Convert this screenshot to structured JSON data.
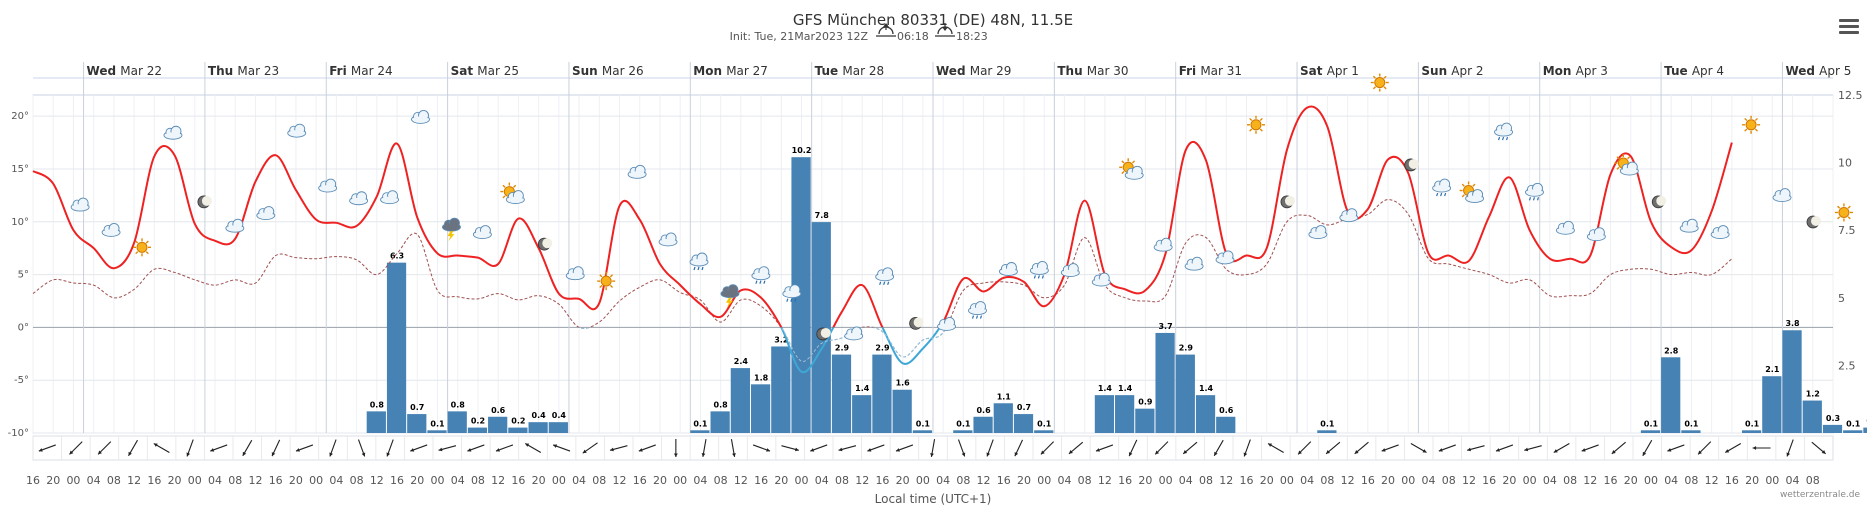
{
  "header": {
    "title": "GFS München 80331 (DE) 48N, 11.5E",
    "init": "Init: Tue, 21Mar2023 12Z",
    "sunrise": "06:18",
    "sunset": "18:23",
    "credit": "wetterzentrale.de",
    "menu_icon": "hamburger-menu-icon"
  },
  "chart_data": {
    "type": "line+bar",
    "xlabel": "Local time (UTC+1)",
    "y_left": {
      "ticks": [
        "20°",
        "15°",
        "10°",
        "5°",
        "0°",
        "-5°",
        "-10°"
      ],
      "values": [
        20,
        15,
        10,
        5,
        0,
        -5,
        -10
      ],
      "range": [
        -10,
        22
      ]
    },
    "y_right": {
      "ticks": [
        "12.5",
        "10",
        "7.5",
        "5",
        "2.5"
      ],
      "values": [
        12.5,
        10,
        7.5,
        5,
        2.5
      ],
      "range": [
        0,
        12.5
      ]
    },
    "days": [
      {
        "dow": "Wed",
        "date": "Mar 22"
      },
      {
        "dow": "Thu",
        "date": "Mar 23"
      },
      {
        "dow": "Fri",
        "date": "Mar 24"
      },
      {
        "dow": "Sat",
        "date": "Mar 25"
      },
      {
        "dow": "Sun",
        "date": "Mar 26"
      },
      {
        "dow": "Mon",
        "date": "Mar 27"
      },
      {
        "dow": "Tue",
        "date": "Mar 28"
      },
      {
        "dow": "Wed",
        "date": "Mar 29"
      },
      {
        "dow": "Thu",
        "date": "Mar 30"
      },
      {
        "dow": "Fri",
        "date": "Mar 31"
      },
      {
        "dow": "Sat",
        "date": "Apr 1"
      },
      {
        "dow": "Sun",
        "date": "Apr 2"
      },
      {
        "dow": "Mon",
        "date": "Apr 3"
      },
      {
        "dow": "Tue",
        "date": "Apr 4"
      },
      {
        "dow": "Wed",
        "date": "Apr 5"
      }
    ],
    "hour_ticks": [
      "16",
      "20",
      "00",
      "04",
      "08",
      "12",
      "16",
      "20",
      "00",
      "04",
      "08",
      "12",
      "16",
      "20",
      "00",
      "04",
      "08",
      "12",
      "16",
      "20",
      "00",
      "04",
      "08",
      "12",
      "16",
      "20",
      "00",
      "04",
      "08",
      "12",
      "16",
      "20",
      "00",
      "04",
      "08",
      "12",
      "16",
      "20",
      "00",
      "04",
      "08",
      "12",
      "16",
      "20",
      "00",
      "04",
      "08",
      "12",
      "16",
      "20",
      "00",
      "04",
      "08",
      "12",
      "16",
      "20",
      "00",
      "04",
      "08",
      "12",
      "16",
      "20",
      "00",
      "04",
      "08",
      "12",
      "16",
      "20",
      "00",
      "04",
      "08",
      "12",
      "16",
      "20",
      "00",
      "04",
      "08",
      "12",
      "16",
      "20",
      "00",
      "04",
      "08",
      "12",
      "16",
      "20",
      "00",
      "04",
      "08"
    ],
    "series": [
      {
        "name": "Temperature 2m",
        "color": "#ee2222",
        "cold_color": "#3fa7d6",
        "unit": "°C",
        "step_hours": 4,
        "values": [
          14.8,
          13.6,
          9.2,
          7.5,
          5.6,
          8.0,
          16.2,
          16.3,
          9.8,
          8.2,
          8.4,
          13.8,
          16.3,
          13.0,
          10.2,
          9.9,
          9.6,
          12.4,
          17.4,
          10.4,
          7.0,
          6.8,
          6.6,
          6.0,
          10.3,
          7.5,
          3.2,
          2.7,
          2.3,
          11.5,
          10.2,
          6.0,
          4.0,
          2.2,
          1.0,
          3.5,
          2.8,
          0.0,
          -4.2,
          -2.0,
          1.5,
          4.0,
          0.0,
          -3.4,
          -2.0,
          0.5,
          4.6,
          3.4,
          4.7,
          4.3,
          2.0,
          5.0,
          12.0,
          5.0,
          3.6,
          3.5,
          7.0,
          16.8,
          15.8,
          7.0,
          6.8,
          7.5,
          16.8,
          20.8,
          19.0,
          11.0,
          11.2,
          15.9,
          14.6,
          7.0,
          6.8,
          6.3,
          10.5,
          14.2,
          9.2,
          6.5,
          6.5,
          6.8,
          14.5,
          16.2,
          10.0,
          7.6,
          7.3,
          11.0,
          17.5
        ]
      },
      {
        "name": "Dew point",
        "color": "#a05050",
        "style": "dashed",
        "unit": "°C",
        "step_hours": 4,
        "values": [
          3.2,
          4.5,
          4.2,
          4.0,
          2.8,
          3.6,
          5.5,
          5.2,
          4.5,
          4.0,
          4.5,
          4.2,
          6.8,
          6.6,
          6.5,
          6.7,
          6.4,
          5.0,
          7.0,
          8.8,
          3.5,
          2.9,
          2.7,
          3.2,
          2.6,
          3.0,
          2.2,
          0.0,
          0.5,
          2.5,
          3.8,
          4.5,
          3.3,
          2.6,
          0.5,
          2.6,
          2.0,
          0.0,
          -3.2,
          -1.5,
          -1.0,
          0.0,
          -0.4,
          -2.8,
          -1.2,
          -0.5,
          3.5,
          4.2,
          4.3,
          4.0,
          2.8,
          4.0,
          8.5,
          4.0,
          2.8,
          2.5,
          3.0,
          8.0,
          8.5,
          5.5,
          5.0,
          6.0,
          10.0,
          10.6,
          9.7,
          10.3,
          10.7,
          12.1,
          10.7,
          6.5,
          6.0,
          5.5,
          5.0,
          4.2,
          4.5,
          3.0,
          3.0,
          3.2,
          5.0,
          5.5,
          5.5,
          5.0,
          5.2,
          5.0,
          6.5
        ]
      },
      {
        "name": "Precipitation",
        "color": "#4682b4",
        "type": "bar",
        "unit": "mm/6h",
        "bars": [
          {
            "t": 17,
            "v": 0.8
          },
          {
            "t": 18,
            "v": 6.3
          },
          {
            "t": 19,
            "v": 0.7
          },
          {
            "t": 20,
            "v": 0.1
          },
          {
            "t": 21,
            "v": 0.8
          },
          {
            "t": 22,
            "v": 0.2
          },
          {
            "t": 23,
            "v": 0.6
          },
          {
            "t": 24,
            "v": 0.2
          },
          {
            "t": 25,
            "v": 0.4
          },
          {
            "t": 26,
            "v": 0.4
          },
          {
            "t": 33,
            "v": 0.1
          },
          {
            "t": 34,
            "v": 0.8
          },
          {
            "t": 35,
            "v": 2.4
          },
          {
            "t": 36,
            "v": 1.8
          },
          {
            "t": 37,
            "v": 3.2
          },
          {
            "t": 38,
            "v": 10.2
          },
          {
            "t": 39,
            "v": 7.8
          },
          {
            "t": 40,
            "v": 2.9
          },
          {
            "t": 41,
            "v": 1.4
          },
          {
            "t": 42,
            "v": 2.9
          },
          {
            "t": 43,
            "v": 1.6
          },
          {
            "t": 44,
            "v": 0.1
          },
          {
            "t": 46,
            "v": 0.1
          },
          {
            "t": 47,
            "v": 0.6
          },
          {
            "t": 48,
            "v": 1.1
          },
          {
            "t": 49,
            "v": 0.7
          },
          {
            "t": 50,
            "v": 0.1
          },
          {
            "t": 53,
            "v": 1.4
          },
          {
            "t": 54,
            "v": 1.4
          },
          {
            "t": 55,
            "v": 0.9
          },
          {
            "t": 56,
            "v": 3.7
          },
          {
            "t": 57,
            "v": 2.9
          },
          {
            "t": 58,
            "v": 1.4
          },
          {
            "t": 59,
            "v": 0.6
          },
          {
            "t": 64,
            "v": 0.1
          },
          {
            "t": 80,
            "v": 0.1
          },
          {
            "t": 81,
            "v": 2.8
          },
          {
            "t": 82,
            "v": 0.1
          },
          {
            "t": 85,
            "v": 0.1
          },
          {
            "t": 86,
            "v": 2.1
          },
          {
            "t": 87,
            "v": 3.8
          },
          {
            "t": 88,
            "v": 1.2
          },
          {
            "t": 89,
            "v": 0.3
          },
          {
            "t": 90,
            "v": 0.1
          },
          {
            "t": 91,
            "v": 0.2
          },
          {
            "t": 92,
            "v": 0.1
          },
          {
            "t": 93,
            "v": 0.1
          },
          {
            "t": 94,
            "v": 0.1
          }
        ]
      }
    ],
    "weather_icons": [
      {
        "t": 1,
        "icon": "cloud-icon",
        "temp": 11.2
      },
      {
        "t": 2,
        "icon": "cloud-icon",
        "temp": 8.8
      },
      {
        "t": 3,
        "icon": "sun-icon",
        "temp": 7.2
      },
      {
        "t": 4,
        "icon": "cloud-icon",
        "temp": 18.0
      },
      {
        "t": 5,
        "icon": "moon-icon",
        "temp": 11.5
      },
      {
        "t": 6,
        "icon": "cloud-icon",
        "temp": 9.2
      },
      {
        "t": 7,
        "icon": "cloud-icon",
        "temp": 10.4
      },
      {
        "t": 8,
        "icon": "cloud-icon",
        "temp": 18.2
      },
      {
        "t": 9,
        "icon": "cloud-icon",
        "temp": 13.0
      },
      {
        "t": 10,
        "icon": "cloud-icon",
        "temp": 11.8
      },
      {
        "t": 11,
        "icon": "cloud-icon",
        "temp": 11.9
      },
      {
        "t": 12,
        "icon": "cloud-icon",
        "temp": 19.5
      },
      {
        "t": 13,
        "icon": "storm-icon",
        "temp": 9.3
      },
      {
        "t": 14,
        "icon": "cloud-icon",
        "temp": 8.6
      },
      {
        "t": 15,
        "icon": "sun-cloud-icon",
        "temp": 12.1
      },
      {
        "t": 16,
        "icon": "moon-icon",
        "temp": 7.5
      },
      {
        "t": 17,
        "icon": "cloud-icon",
        "temp": 4.7
      },
      {
        "t": 18,
        "icon": "sun-icon",
        "temp": 4.0
      },
      {
        "t": 19,
        "icon": "cloud-icon",
        "temp": 14.3
      },
      {
        "t": 20,
        "icon": "cloud-icon",
        "temp": 7.9
      },
      {
        "t": 21,
        "icon": "rain-icon",
        "temp": 6.0
      },
      {
        "t": 22,
        "icon": "storm-icon",
        "temp": 3.0
      },
      {
        "t": 23,
        "icon": "rain-icon",
        "temp": 4.7
      },
      {
        "t": 24,
        "icon": "rain-icon",
        "temp": 3.0
      },
      {
        "t": 25,
        "icon": "moon-icon",
        "temp": -1.0
      },
      {
        "t": 26,
        "icon": "cloud-icon",
        "temp": -1.0
      },
      {
        "t": 27,
        "icon": "rain-icon",
        "temp": 4.6
      },
      {
        "t": 28,
        "icon": "moon-icon",
        "temp": 0.0
      },
      {
        "t": 29,
        "icon": "cloud-icon",
        "temp": -0.1
      },
      {
        "t": 30,
        "icon": "rain-icon",
        "temp": 1.4
      },
      {
        "t": 31,
        "icon": "cloud-icon",
        "temp": 5.1
      },
      {
        "t": 32,
        "icon": "rain-icon",
        "temp": 5.2
      },
      {
        "t": 33,
        "icon": "cloud-icon",
        "temp": 5.0
      },
      {
        "t": 34,
        "icon": "cloud-icon",
        "temp": 4.1
      },
      {
        "t": 35,
        "icon": "sun-cloud-icon",
        "temp": 14.4
      },
      {
        "t": 36,
        "icon": "cloud-icon",
        "temp": 7.4
      },
      {
        "t": 37,
        "icon": "cloud-icon",
        "temp": 5.6
      },
      {
        "t": 38,
        "icon": "cloud-icon",
        "temp": 6.2
      },
      {
        "t": 39,
        "icon": "sun-icon",
        "temp": 18.8
      },
      {
        "t": 40,
        "icon": "moon-icon",
        "temp": 11.5
      },
      {
        "t": 41,
        "icon": "cloud-icon",
        "temp": 8.6
      },
      {
        "t": 42,
        "icon": "cloud-icon",
        "temp": 10.2
      },
      {
        "t": 43,
        "icon": "sun-icon",
        "temp": 22.8
      },
      {
        "t": 44,
        "icon": "moon-icon",
        "temp": 15.0
      },
      {
        "t": 45,
        "icon": "rain-icon",
        "temp": 13.0
      },
      {
        "t": 46,
        "icon": "sun-cloud-icon",
        "temp": 12.2
      },
      {
        "t": 47,
        "icon": "rain-icon",
        "temp": 18.3
      },
      {
        "t": 48,
        "icon": "rain-icon",
        "temp": 12.6
      },
      {
        "t": 49,
        "icon": "cloud-icon",
        "temp": 9.0
      },
      {
        "t": 50,
        "icon": "cloud-icon",
        "temp": 8.4
      },
      {
        "t": 51,
        "icon": "sun-cloud-icon",
        "temp": 14.8
      },
      {
        "t": 52,
        "icon": "moon-icon",
        "temp": 11.5
      },
      {
        "t": 53,
        "icon": "cloud-icon",
        "temp": 9.2
      },
      {
        "t": 54,
        "icon": "cloud-icon",
        "temp": 8.6
      },
      {
        "t": 55,
        "icon": "sun-icon",
        "temp": 18.8
      },
      {
        "t": 56,
        "icon": "cloud-icon",
        "temp": 12.1
      },
      {
        "t": 57,
        "icon": "moon-icon",
        "temp": 9.6
      },
      {
        "t": 58,
        "icon": "sun-icon",
        "temp": 10.5
      }
    ],
    "wind_directions": [
      250,
      225,
      225,
      210,
      300,
      200,
      250,
      210,
      205,
      250,
      200,
      160,
      200,
      250,
      255,
      250,
      250,
      300,
      290,
      235,
      255,
      250,
      180,
      190,
      170,
      110,
      105,
      250,
      255,
      250,
      250,
      190,
      160,
      200,
      205,
      225,
      230,
      250,
      205,
      225,
      230,
      210,
      200,
      300,
      225,
      230,
      230,
      250,
      120,
      250,
      255,
      250,
      255,
      240,
      250,
      230,
      210,
      250,
      225,
      240,
      270,
      200,
      130
    ]
  }
}
